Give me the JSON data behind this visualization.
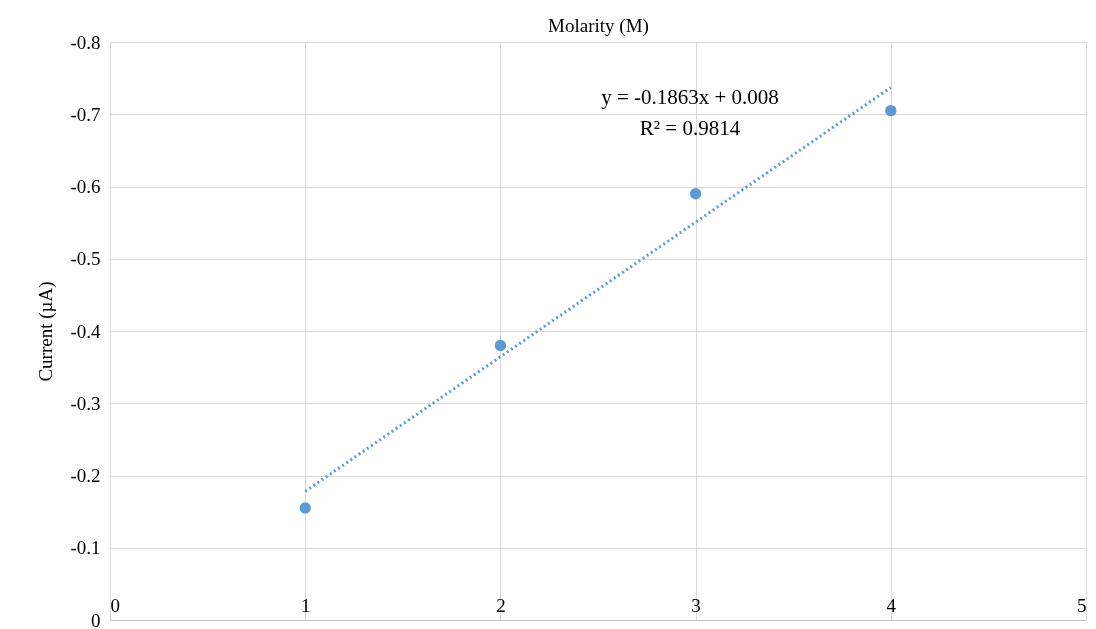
{
  "chart_data": {
    "type": "scatter",
    "xlabel": "Molarity (M)",
    "ylabel": "Current (µA)",
    "x": [
      1,
      2,
      3,
      4
    ],
    "series": [
      {
        "type": "scatter",
        "color": "#5b9bd5",
        "values": [
          -0.155,
          -0.38,
          -0.59,
          -0.705
        ],
        "marker": "circle"
      },
      {
        "type": "line",
        "color": "#5b9bd5",
        "x": [
          1,
          4
        ],
        "values": [
          -0.178,
          -0.737
        ],
        "line_style": "dotted"
      }
    ],
    "annotations": [
      "y = -0.1863x + 0.008",
      "R² = 0.9814"
    ],
    "xlim": [
      0,
      5
    ],
    "xticks": [
      0,
      1,
      2,
      3,
      4,
      5
    ],
    "ylim": [
      0,
      -0.8
    ],
    "yticks": [
      0,
      -0.1,
      -0.2,
      -0.3,
      -0.4,
      -0.5,
      -0.6,
      -0.7,
      -0.8
    ],
    "grid": true
  }
}
